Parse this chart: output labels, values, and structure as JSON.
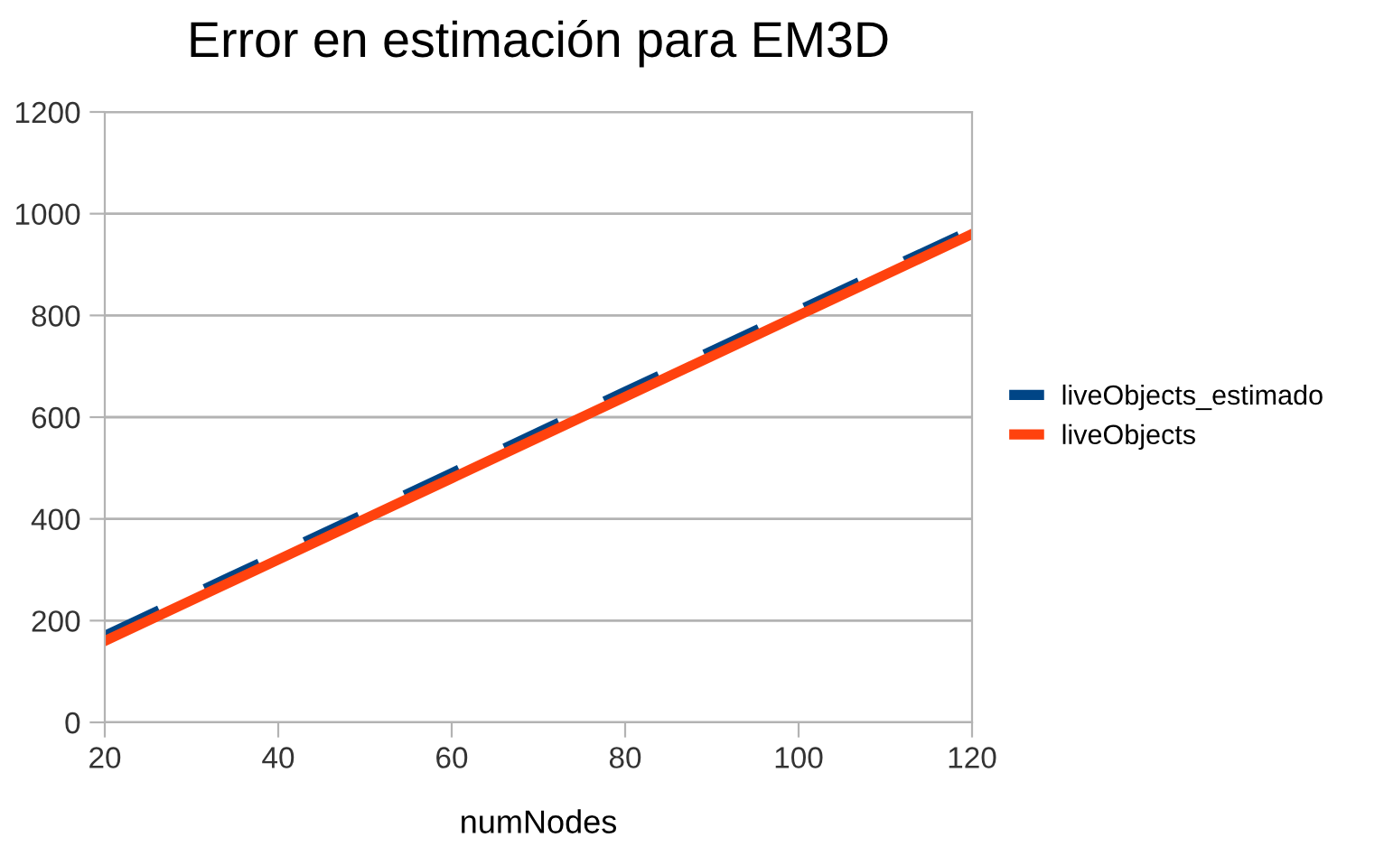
{
  "chart_data": {
    "type": "line",
    "title": "Error en estimación para EM3D",
    "xlabel": "numNodes",
    "x": [
      20,
      40,
      60,
      80,
      100,
      120
    ],
    "series": [
      {
        "name": "liveObjects_estimado",
        "color": "#004586",
        "line_style": "dashed",
        "values": [
          170,
          330,
          490,
          650,
          810,
          968
        ]
      },
      {
        "name": "liveObjects",
        "color": "#ff420e",
        "line_style": "solid",
        "values": [
          160,
          320,
          480,
          640,
          800,
          960
        ]
      }
    ],
    "xlim": [
      20,
      120
    ],
    "xticks": [
      20,
      40,
      60,
      80,
      100,
      120
    ],
    "ylim": [
      0,
      1200
    ],
    "yticks": [
      0,
      200,
      400,
      600,
      800,
      1000,
      1200
    ],
    "grid": "y",
    "legend": "right",
    "marker": "none"
  }
}
